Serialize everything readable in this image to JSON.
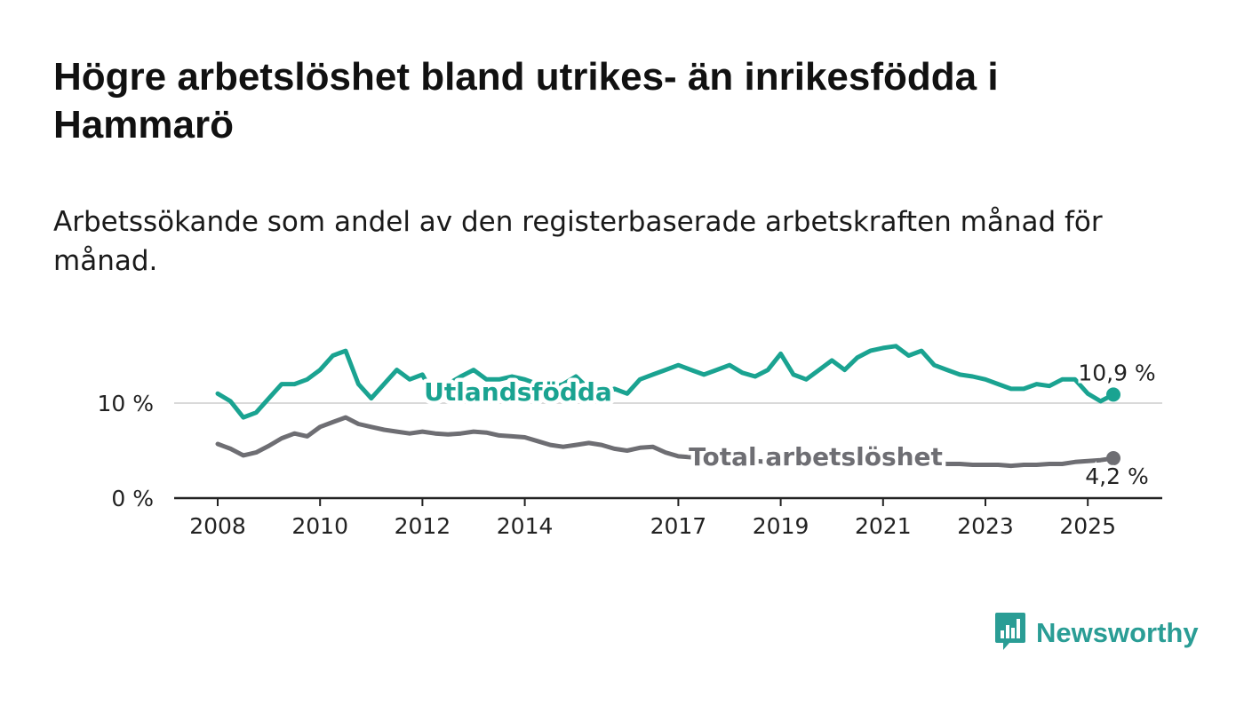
{
  "title": "Högre arbetslöshet bland utrikes- än inrikesfödda i Hammarö",
  "subtitle": "Arbetssökande som andel av den registerbaserade arbetskraften månad för månad.",
  "brand": {
    "name": "Newsworthy",
    "color": "#2a9d95",
    "icon": "newsworthy-logo-icon"
  },
  "colors": {
    "utlandsfodda": "#1aa391",
    "total": "#6e6e73",
    "axis": "#222222",
    "grid": "#d9d9d9"
  },
  "chart_data": {
    "type": "line",
    "title": "Högre arbetslöshet bland utrikes- än inrikesfödda i Hammarö",
    "subtitle": "Arbetssökande som andel av den registerbaserade arbetskraften månad för månad.",
    "x_ticks": [
      "2008",
      "2010",
      "2012",
      "2014",
      "2017",
      "2019",
      "2021",
      "2023",
      "2025"
    ],
    "y_ticks": [
      "0 %",
      "10 %"
    ],
    "ylim": [
      0,
      18
    ],
    "grid": "horizontal at 10 %",
    "series": [
      {
        "name": "Utlandsfödda",
        "end_label": "10,9 %",
        "x": [
          "2008-01",
          "2008-04",
          "2008-07",
          "2008-10",
          "2009-01",
          "2009-04",
          "2009-07",
          "2009-10",
          "2010-01",
          "2010-04",
          "2010-07",
          "2010-10",
          "2011-01",
          "2011-04",
          "2011-07",
          "2011-10",
          "2012-01",
          "2012-04",
          "2012-07",
          "2012-10",
          "2013-01",
          "2013-04",
          "2013-07",
          "2013-10",
          "2014-01",
          "2014-04",
          "2014-07",
          "2014-10",
          "2015-01",
          "2015-04",
          "2015-07",
          "2015-10",
          "2016-01",
          "2016-04",
          "2016-07",
          "2016-10",
          "2017-01",
          "2017-04",
          "2017-07",
          "2017-10",
          "2018-01",
          "2018-04",
          "2018-07",
          "2018-10",
          "2019-01",
          "2019-04",
          "2019-07",
          "2019-10",
          "2020-01",
          "2020-04",
          "2020-07",
          "2020-10",
          "2021-01",
          "2021-04",
          "2021-07",
          "2021-10",
          "2022-01",
          "2022-04",
          "2022-07",
          "2022-10",
          "2023-01",
          "2023-04",
          "2023-07",
          "2023-10",
          "2024-01",
          "2024-04",
          "2024-07",
          "2024-10",
          "2025-01",
          "2025-04",
          "2025-07"
        ],
        "values": [
          11.0,
          10.2,
          8.5,
          9.0,
          10.5,
          12.0,
          12.0,
          12.5,
          13.5,
          15.0,
          15.5,
          12.0,
          10.5,
          12.0,
          13.5,
          12.5,
          13.0,
          10.5,
          12.0,
          12.8,
          13.5,
          12.5,
          12.5,
          12.8,
          12.5,
          12.0,
          11.5,
          12.0,
          12.8,
          11.5,
          11.0,
          11.5,
          11.0,
          12.5,
          13.0,
          13.5,
          14.0,
          13.5,
          13.0,
          13.5,
          14.0,
          13.2,
          12.8,
          13.5,
          15.2,
          13.0,
          12.5,
          13.5,
          14.5,
          13.5,
          14.8,
          15.5,
          15.8,
          16.0,
          15.0,
          15.5,
          14.0,
          13.5,
          13.0,
          12.8,
          12.5,
          12.0,
          11.5,
          11.5,
          12.0,
          11.8,
          12.5,
          12.5,
          11.0,
          10.2,
          10.9
        ]
      },
      {
        "name": "Total arbetslöshet",
        "end_label": "4,2 %",
        "x": [
          "2008-01",
          "2008-04",
          "2008-07",
          "2008-10",
          "2009-01",
          "2009-04",
          "2009-07",
          "2009-10",
          "2010-01",
          "2010-04",
          "2010-07",
          "2010-10",
          "2011-01",
          "2011-04",
          "2011-07",
          "2011-10",
          "2012-01",
          "2012-04",
          "2012-07",
          "2012-10",
          "2013-01",
          "2013-04",
          "2013-07",
          "2013-10",
          "2014-01",
          "2014-04",
          "2014-07",
          "2014-10",
          "2015-01",
          "2015-04",
          "2015-07",
          "2015-10",
          "2016-01",
          "2016-04",
          "2016-07",
          "2016-10",
          "2017-01",
          "2017-04",
          "2017-07",
          "2017-10",
          "2018-01",
          "2018-04",
          "2018-07",
          "2018-10",
          "2019-01",
          "2019-04",
          "2019-07",
          "2019-10",
          "2020-01",
          "2020-04",
          "2020-07",
          "2020-10",
          "2021-01",
          "2021-04",
          "2021-07",
          "2021-10",
          "2022-01",
          "2022-04",
          "2022-07",
          "2022-10",
          "2023-01",
          "2023-04",
          "2023-07",
          "2023-10",
          "2024-01",
          "2024-04",
          "2024-07",
          "2024-10",
          "2025-01",
          "2025-04",
          "2025-07"
        ],
        "values": [
          5.7,
          5.2,
          4.5,
          4.8,
          5.5,
          6.3,
          6.8,
          6.5,
          7.5,
          8.0,
          8.5,
          7.8,
          7.5,
          7.2,
          7.0,
          6.8,
          7.0,
          6.8,
          6.7,
          6.8,
          7.0,
          6.9,
          6.6,
          6.5,
          6.4,
          6.0,
          5.6,
          5.4,
          5.6,
          5.8,
          5.6,
          5.2,
          5.0,
          5.3,
          5.4,
          4.8,
          4.4,
          4.3,
          4.2,
          3.9,
          3.8,
          3.8,
          3.9,
          3.8,
          3.8,
          3.7,
          3.6,
          3.6,
          3.6,
          3.6,
          3.7,
          3.7,
          3.6,
          3.7,
          3.8,
          3.8,
          3.7,
          3.6,
          3.6,
          3.5,
          3.5,
          3.5,
          3.4,
          3.5,
          3.5,
          3.6,
          3.6,
          3.8,
          3.9,
          4.0,
          4.2
        ]
      }
    ]
  }
}
